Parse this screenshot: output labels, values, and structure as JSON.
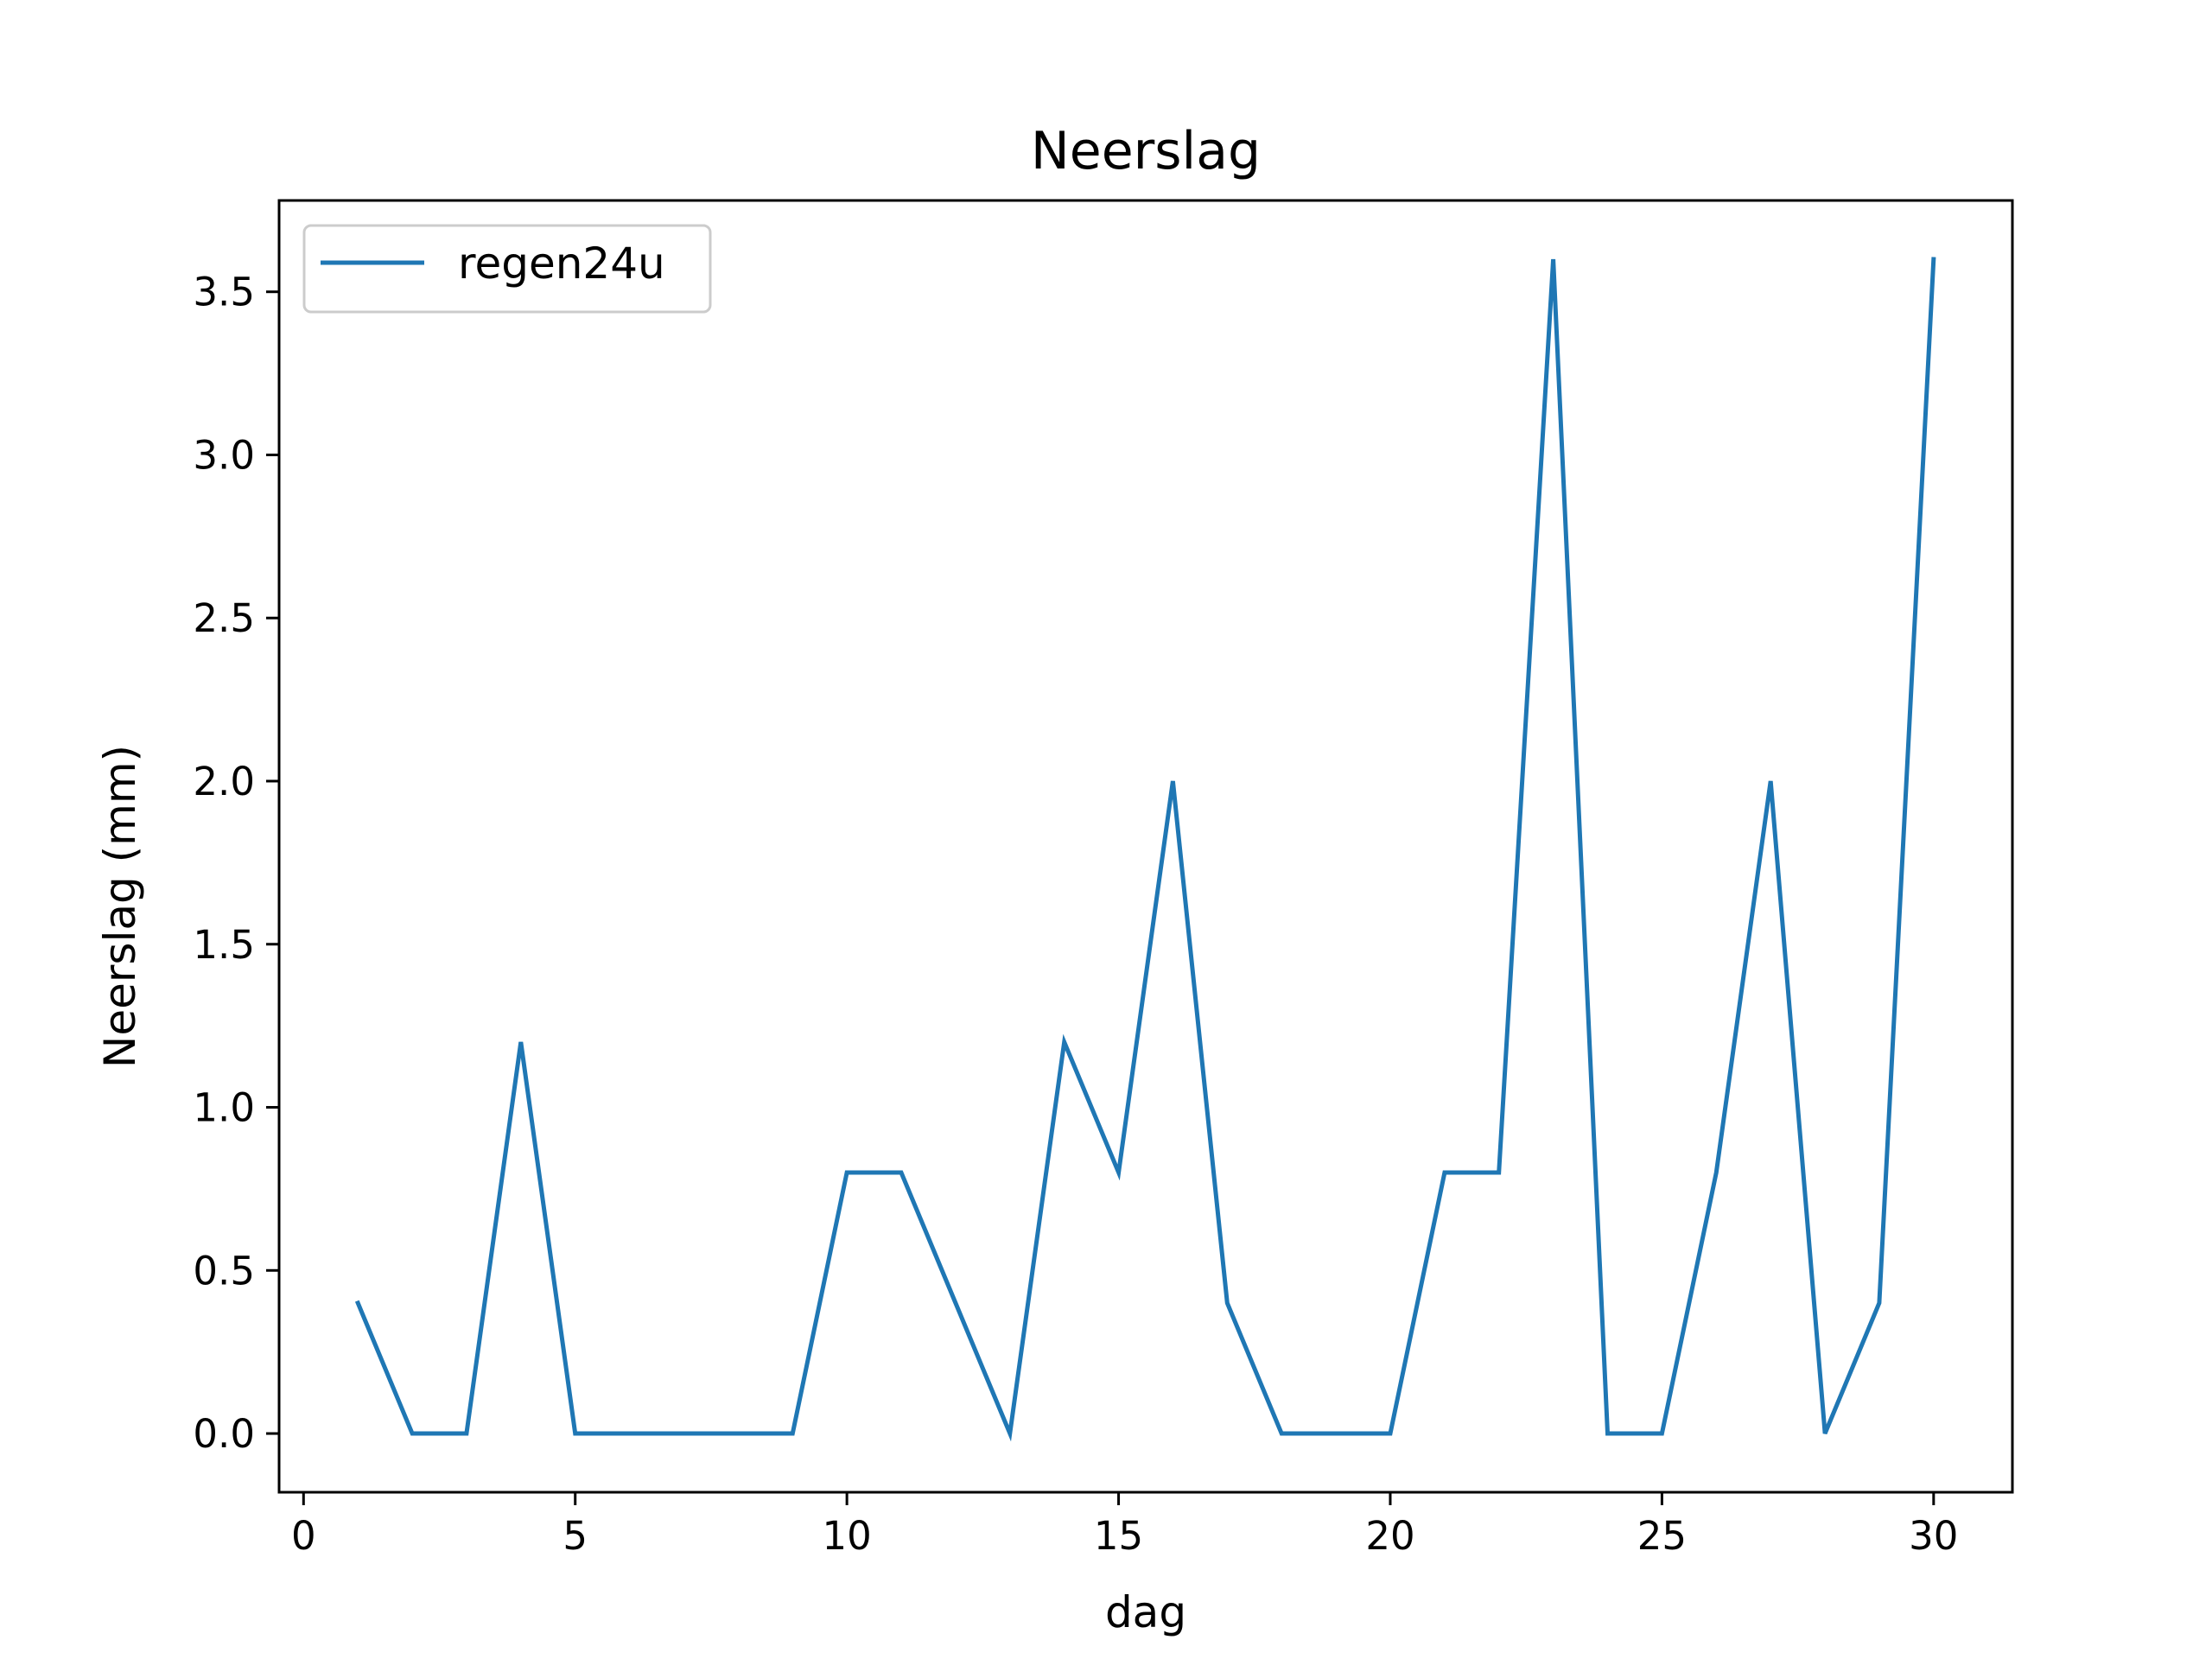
{
  "chart_data": {
    "type": "line",
    "title": "Neerslag",
    "xlabel": "dag",
    "ylabel": "Neerslag (mm)",
    "xlim": [
      -0.45,
      31.45
    ],
    "ylim": [
      -0.18,
      3.78
    ],
    "xticks": [
      0,
      5,
      10,
      15,
      20,
      25,
      30
    ],
    "xtick_labels": [
      "0",
      "5",
      "10",
      "15",
      "20",
      "25",
      "30"
    ],
    "yticks": [
      0.0,
      0.5,
      1.0,
      1.5,
      2.0,
      2.5,
      3.0,
      3.5
    ],
    "ytick_labels": [
      "0.0",
      "0.5",
      "1.0",
      "1.5",
      "2.0",
      "2.5",
      "3.0",
      "3.5"
    ],
    "grid": false,
    "legend_position": "upper-left",
    "series": [
      {
        "name": "regen24u",
        "color": "#1f77b4",
        "x": [
          1,
          2,
          3,
          4,
          5,
          6,
          7,
          8,
          9,
          10,
          11,
          12,
          13,
          14,
          15,
          16,
          17,
          18,
          19,
          20,
          21,
          22,
          23,
          24,
          25,
          26,
          27,
          28,
          29,
          30
        ],
        "y": [
          0.4,
          0.0,
          0.0,
          1.2,
          0.0,
          0.0,
          0.0,
          0.0,
          0.0,
          0.8,
          0.8,
          0.4,
          0.0,
          1.2,
          0.8,
          2.0,
          0.4,
          0.0,
          0.0,
          0.0,
          0.8,
          0.8,
          3.6,
          0.0,
          0.0,
          0.8,
          2.0,
          0.0,
          0.4,
          3.6
        ]
      }
    ]
  }
}
